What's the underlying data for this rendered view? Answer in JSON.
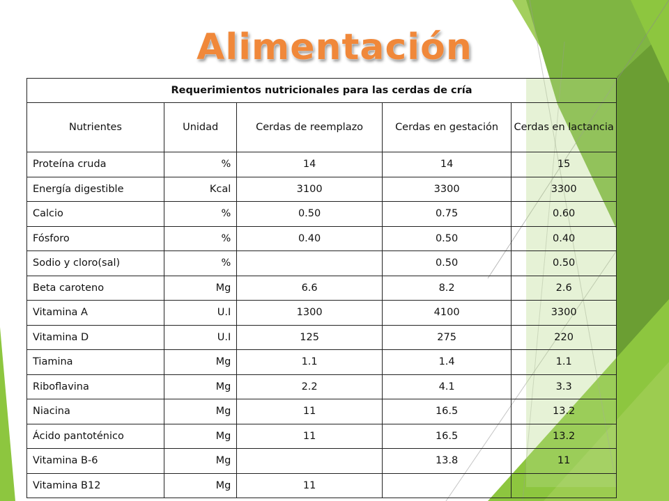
{
  "title": "Alimentación",
  "colors": {
    "title": "#f0883a",
    "accent_light": "#8dc63f",
    "accent_dark": "#5a8f28"
  },
  "table": {
    "caption": "Requerimientos nutricionales  para las cerdas de cría",
    "headers": [
      "Nutrientes",
      "Unidad",
      "Cerdas de reemplazo",
      "Cerdas en gestación",
      "Cerdas en lactancia"
    ],
    "rows": [
      [
        "Proteína cruda",
        "%",
        "14",
        "14",
        "15"
      ],
      [
        "Energía digestible",
        "Kcal",
        "3100",
        "3300",
        "3300"
      ],
      [
        "Calcio",
        "%",
        "0.50",
        "0.75",
        "0.60"
      ],
      [
        "Fósforo",
        "%",
        "0.40",
        "0.50",
        "0.40"
      ],
      [
        "Sodio y cloro(sal)",
        "%",
        "",
        "0.50",
        "0.50"
      ],
      [
        "Beta caroteno",
        "Mg",
        "6.6",
        "8.2",
        "2.6"
      ],
      [
        "Vitamina A",
        "U.I",
        "1300",
        "4100",
        "3300"
      ],
      [
        "Vitamina D",
        "U.I",
        "125",
        "275",
        "220"
      ],
      [
        "Tiamina",
        "Mg",
        "1.1",
        "1.4",
        "1.1"
      ],
      [
        "Riboflavina",
        "Mg",
        "2.2",
        "4.1",
        "3.3"
      ],
      [
        "Niacina",
        "Mg",
        "11",
        "16.5",
        "13.2"
      ],
      [
        "Ácido pantoténico",
        "Mg",
        "11",
        "16.5",
        "13.2"
      ],
      [
        "Vitamina B-6",
        "Mg",
        "",
        "13.8",
        "11"
      ],
      [
        "Vitamina B12",
        "Mg",
        "11",
        "",
        ""
      ]
    ]
  }
}
